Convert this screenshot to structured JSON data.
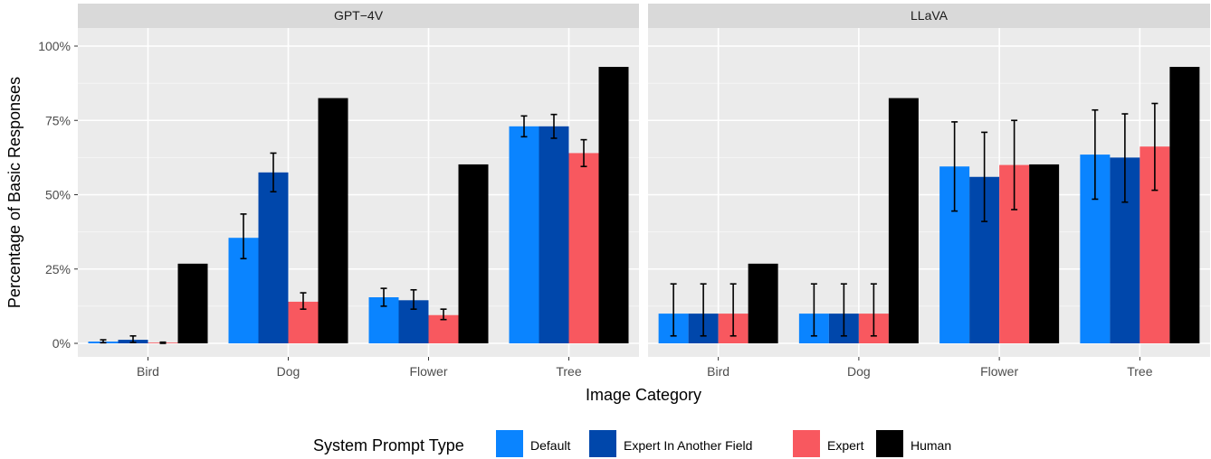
{
  "chart_data": {
    "type": "bar",
    "panels": [
      "GPT−4V",
      "LLaVA"
    ],
    "categories": [
      "Bird",
      "Dog",
      "Flower",
      "Tree"
    ],
    "xlabel": "Image Category",
    "ylabel": "Percentage of Basic Responses",
    "ylim": [
      0,
      1.0
    ],
    "yticks": [
      0,
      0.25,
      0.5,
      0.75,
      1.0
    ],
    "ytick_labels": [
      "0%",
      "25%",
      "50%",
      "75%",
      "100%"
    ],
    "legend": {
      "title": "System Prompt Type",
      "placement": "bottom"
    },
    "grid": true,
    "series": [
      {
        "name": "Default",
        "color": "#0a84ff",
        "GPT−4V": {
          "values": [
            0.006,
            0.355,
            0.155,
            0.73
          ],
          "err_low": [
            0.002,
            0.285,
            0.125,
            0.695
          ],
          "err_high": [
            0.012,
            0.435,
            0.185,
            0.765
          ]
        },
        "LLaVA": {
          "values": [
            0.1,
            0.1,
            0.595,
            0.635
          ],
          "err_low": [
            0.025,
            0.025,
            0.445,
            0.485
          ],
          "err_high": [
            0.2,
            0.2,
            0.745,
            0.785
          ]
        }
      },
      {
        "name": "Expert In Another Field",
        "color": "#0047ab",
        "GPT−4V": {
          "values": [
            0.012,
            0.575,
            0.145,
            0.73
          ],
          "err_low": [
            0.003,
            0.51,
            0.115,
            0.69
          ],
          "err_high": [
            0.025,
            0.64,
            0.18,
            0.77
          ]
        },
        "LLaVA": {
          "values": [
            0.1,
            0.1,
            0.56,
            0.625
          ],
          "err_low": [
            0.025,
            0.025,
            0.41,
            0.475
          ],
          "err_high": [
            0.2,
            0.2,
            0.71,
            0.772
          ]
        }
      },
      {
        "name": "Expert",
        "color": "#f8585f",
        "GPT−4V": {
          "values": [
            0.002,
            0.14,
            0.095,
            0.64
          ],
          "err_low": [
            0.0,
            0.115,
            0.08,
            0.595
          ],
          "err_high": [
            0.004,
            0.17,
            0.115,
            0.685
          ]
        },
        "LLaVA": {
          "values": [
            0.1,
            0.1,
            0.6,
            0.662
          ],
          "err_low": [
            0.025,
            0.025,
            0.45,
            0.515
          ],
          "err_high": [
            0.2,
            0.2,
            0.75,
            0.807
          ]
        }
      },
      {
        "name": "Human",
        "color": "#000000",
        "GPT−4V": {
          "values": [
            0.268,
            0.825,
            0.602,
            0.93
          ]
        },
        "LLaVA": {
          "values": [
            0.268,
            0.825,
            0.602,
            0.93
          ]
        }
      }
    ]
  }
}
